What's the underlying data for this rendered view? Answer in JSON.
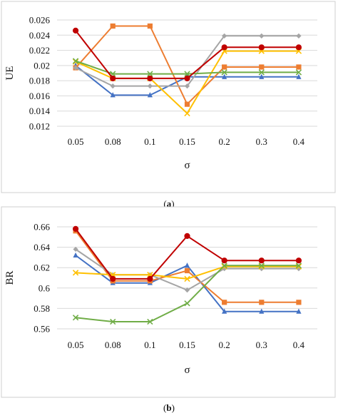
{
  "chart_data": [
    {
      "type": "line",
      "xlabel": "σ",
      "ylabel": "UE",
      "caption_prefix": "(",
      "caption_letter": "a",
      "caption_suffix": ")",
      "categories": [
        "0.05",
        "0.08",
        "0.1",
        "0.15",
        "0.2",
        "0.3",
        "0.4"
      ],
      "ylim": [
        0.012,
        0.026
      ],
      "yticks": [
        "0.012",
        "0.014",
        "0.016",
        "0.018",
        "0.02",
        "0.022",
        "0.024",
        "0.026"
      ],
      "grid": true,
      "legend": "none",
      "series": [
        {
          "color": "#4472C4",
          "marker": "triangle",
          "values": [
            0.02,
            0.0161,
            0.0161,
            0.0185,
            0.0185,
            0.0185,
            0.0185
          ]
        },
        {
          "color": "#ED7D31",
          "marker": "square",
          "values": [
            0.0197,
            0.0252,
            0.0252,
            0.0149,
            0.0198,
            0.0198,
            0.0198
          ]
        },
        {
          "color": "#A5A5A5",
          "marker": "diamond",
          "values": [
            0.0197,
            0.0173,
            0.0173,
            0.0173,
            0.0239,
            0.0239,
            0.0239
          ]
        },
        {
          "color": "#FFC000",
          "marker": "x",
          "values": [
            0.0205,
            0.0183,
            0.0183,
            0.0137,
            0.0219,
            0.0219,
            0.0219
          ]
        },
        {
          "color": "#70AD47",
          "marker": "x",
          "values": [
            0.0206,
            0.0189,
            0.0189,
            0.0189,
            0.0191,
            0.0191,
            0.0191
          ]
        },
        {
          "color": "#C00000",
          "marker": "circle",
          "values": [
            0.0246,
            0.0183,
            0.0183,
            0.0183,
            0.0224,
            0.0224,
            0.0224
          ]
        }
      ]
    },
    {
      "type": "line",
      "xlabel": "σ",
      "ylabel": "BR",
      "caption_prefix": "(",
      "caption_letter": "b",
      "caption_suffix": ")",
      "categories": [
        "0.05",
        "0.08",
        "0.1",
        "0.15",
        "0.2",
        "0.3",
        "0.4"
      ],
      "ylim": [
        0.56,
        0.66
      ],
      "yticks": [
        "0.56",
        "0.58",
        "0.6",
        "0.62",
        "0.64",
        "0.66"
      ],
      "grid": true,
      "legend": "none",
      "series": [
        {
          "color": "#4472C4",
          "marker": "triangle",
          "values": [
            0.632,
            0.605,
            0.605,
            0.622,
            0.577,
            0.577,
            0.577
          ]
        },
        {
          "color": "#ED7D31",
          "marker": "square",
          "values": [
            0.656,
            0.607,
            0.607,
            0.617,
            0.586,
            0.586,
            0.586
          ]
        },
        {
          "color": "#A5A5A5",
          "marker": "diamond",
          "values": [
            0.638,
            0.613,
            0.613,
            0.598,
            0.619,
            0.619,
            0.619
          ]
        },
        {
          "color": "#FFC000",
          "marker": "x",
          "values": [
            0.615,
            0.613,
            0.613,
            0.609,
            0.621,
            0.621,
            0.621
          ]
        },
        {
          "color": "#70AD47",
          "marker": "x",
          "values": [
            0.571,
            0.567,
            0.567,
            0.585,
            0.622,
            0.622,
            0.622
          ]
        },
        {
          "color": "#C00000",
          "marker": "circle",
          "values": [
            0.658,
            0.609,
            0.609,
            0.651,
            0.627,
            0.627,
            0.627
          ]
        }
      ]
    }
  ]
}
